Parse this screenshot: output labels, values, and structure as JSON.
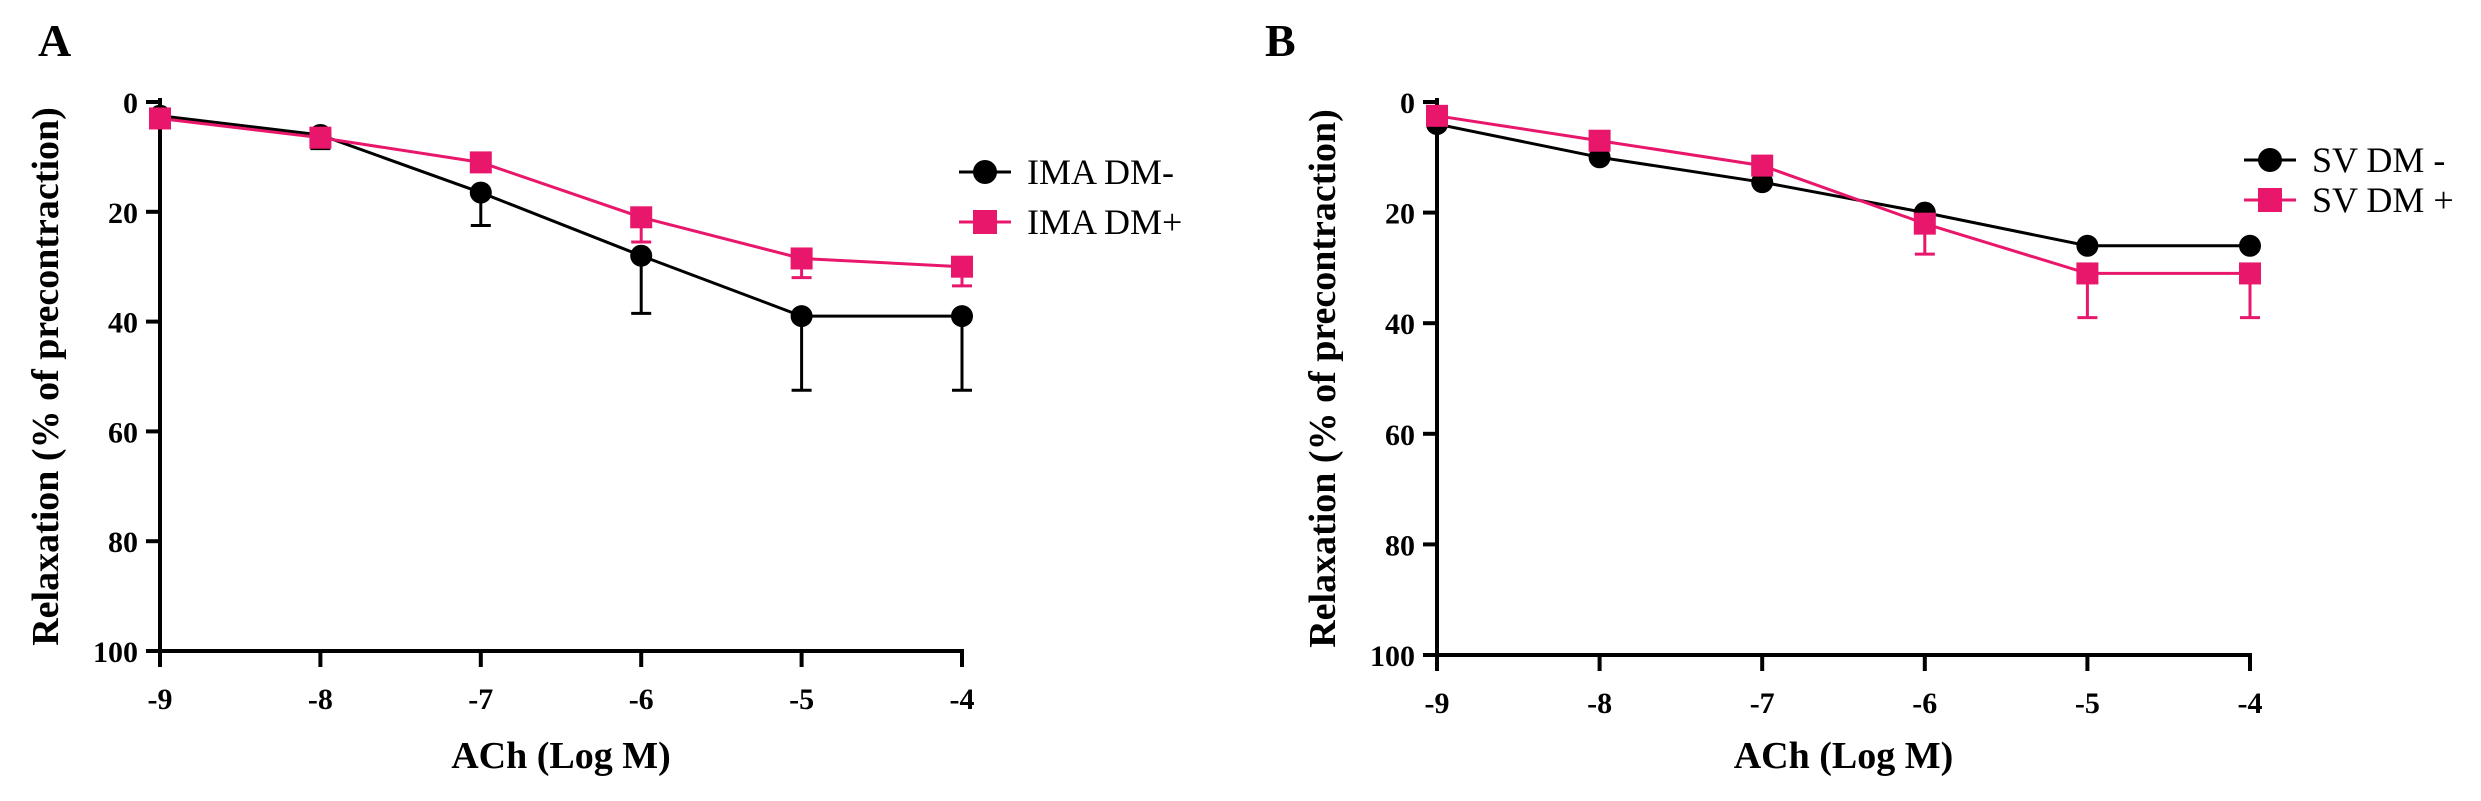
{
  "colors": {
    "black": "#000000",
    "pink": "#e8176c"
  },
  "chart_data": [
    {
      "panel_label": "A",
      "type": "line",
      "title": "",
      "xlabel": "ACh (Log M)",
      "ylabel": "Relaxation (% of precontraction)",
      "x": [
        -9,
        -8,
        -7,
        -6,
        -5,
        -4
      ],
      "xlim": [
        -9,
        -4
      ],
      "ylim": [
        0,
        100
      ],
      "y_inverted": true,
      "x_ticks": [
        -9,
        -8,
        -7,
        -6,
        -5,
        -4
      ],
      "x_tick_labels": [
        "-9",
        "-8",
        "-7",
        "-6",
        "-5",
        "-4"
      ],
      "y_ticks": [
        0,
        20,
        40,
        60,
        80,
        100
      ],
      "y_tick_labels": [
        "0",
        "20",
        "40",
        "60",
        "80",
        "100"
      ],
      "legend_position": "top-right",
      "grid": false,
      "series": [
        {
          "name": "IMA DM-",
          "marker": "circle",
          "color": "#000000",
          "values": [
            2.5,
            6,
            16.5,
            28,
            39,
            39
          ],
          "errors": [
            0,
            2.5,
            6,
            10.5,
            13.5,
            13.5
          ]
        },
        {
          "name": "IMA DM+",
          "marker": "square",
          "color": "#e8176c",
          "values": [
            3,
            6.5,
            11,
            21,
            28.5,
            30
          ],
          "errors": [
            0,
            0,
            0,
            4.5,
            3.5,
            3.5
          ]
        }
      ]
    },
    {
      "panel_label": "B",
      "type": "line",
      "title": "",
      "xlabel": "ACh (Log M)",
      "ylabel": "Relaxation (% of precontraction)",
      "x": [
        -9,
        -8,
        -7,
        -6,
        -5,
        -4
      ],
      "xlim": [
        -9,
        -4
      ],
      "ylim": [
        0,
        100
      ],
      "y_inverted": true,
      "x_ticks": [
        -9,
        -8,
        -7,
        -6,
        -5,
        -4
      ],
      "x_tick_labels": [
        "-9",
        "-8",
        "-7",
        "-6",
        "-5",
        "-4"
      ],
      "y_ticks": [
        0,
        20,
        40,
        60,
        80,
        100
      ],
      "y_tick_labels": [
        "0",
        "20",
        "40",
        "60",
        "80",
        "100"
      ],
      "legend_position": "top-right",
      "grid": false,
      "series": [
        {
          "name": "SV DM -",
          "marker": "circle",
          "color": "#000000",
          "values": [
            4,
            10,
            14.5,
            20,
            26,
            26
          ],
          "errors": [
            0,
            0,
            0,
            0,
            0,
            0
          ]
        },
        {
          "name": "SV DM +",
          "marker": "square",
          "color": "#e8176c",
          "values": [
            2.5,
            7,
            11.5,
            22,
            31,
            31
          ],
          "errors": [
            0,
            0,
            0,
            5.5,
            8,
            8
          ]
        }
      ]
    }
  ]
}
